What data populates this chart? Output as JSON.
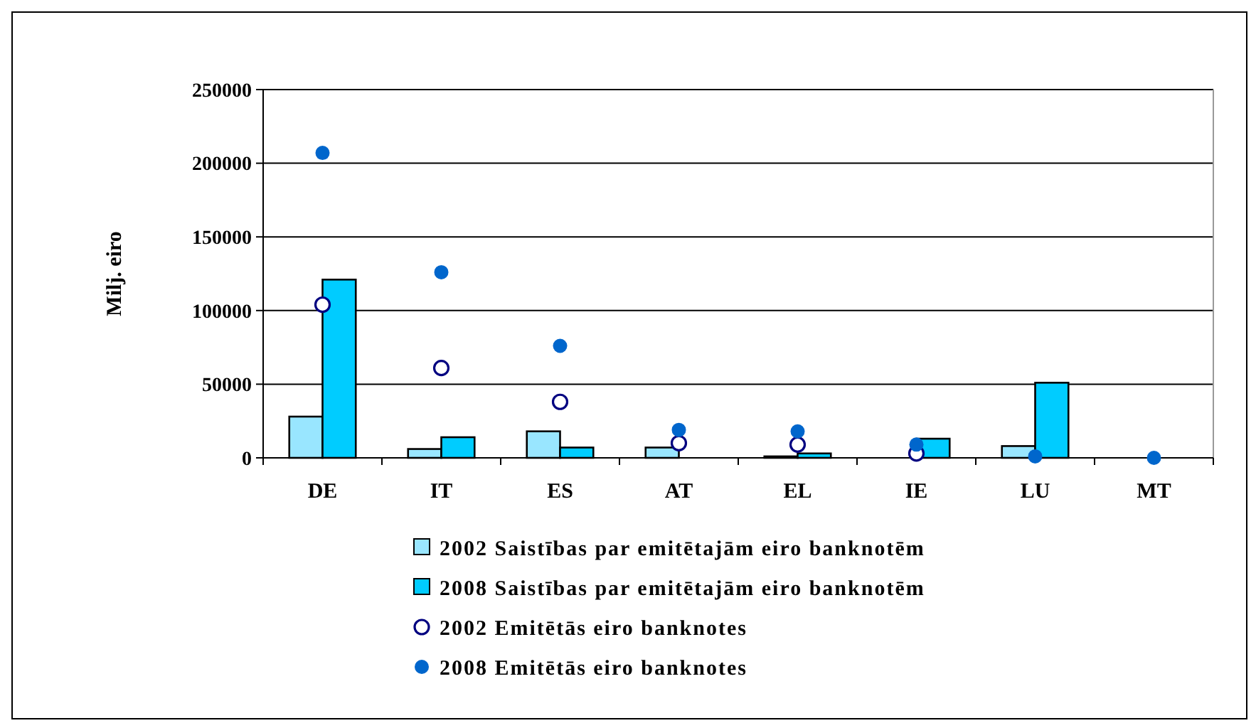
{
  "chart_data": {
    "type": "bar",
    "ylabel": "Milj. eiro",
    "categories": [
      "DE",
      "IT",
      "ES",
      "AT",
      "EL",
      "IE",
      "LU",
      "MT"
    ],
    "series": [
      {
        "name": "2002 Saistības par emitētajām eiro banknotēm",
        "color": "#99e6ff",
        "values": [
          28000,
          6000,
          18000,
          7000,
          1000,
          null,
          8000,
          null
        ]
      },
      {
        "name": "2008 Saistības par emitētajām eiro banknotēm",
        "color": "#00ccff",
        "values": [
          121000,
          14000,
          7000,
          null,
          3000,
          13000,
          51000,
          null
        ]
      },
      {
        "name": "2002 Emitētās eiro banknotes",
        "type": "scatter",
        "marker": "circle",
        "color": "#000080",
        "values": [
          104000,
          61000,
          38000,
          10000,
          9000,
          3000,
          null,
          null
        ]
      },
      {
        "name": "2008 Emitētās eiro banknotes",
        "type": "scatter",
        "marker": "circle",
        "color": "#0066cc",
        "values": [
          207000,
          126000,
          76000,
          19000,
          18000,
          9000,
          1000,
          0
        ]
      }
    ],
    "ylim": [
      0,
      250000
    ],
    "yticks": [
      0,
      50000,
      100000,
      150000,
      200000,
      250000
    ],
    "grid": "y",
    "legend": "bottom"
  }
}
